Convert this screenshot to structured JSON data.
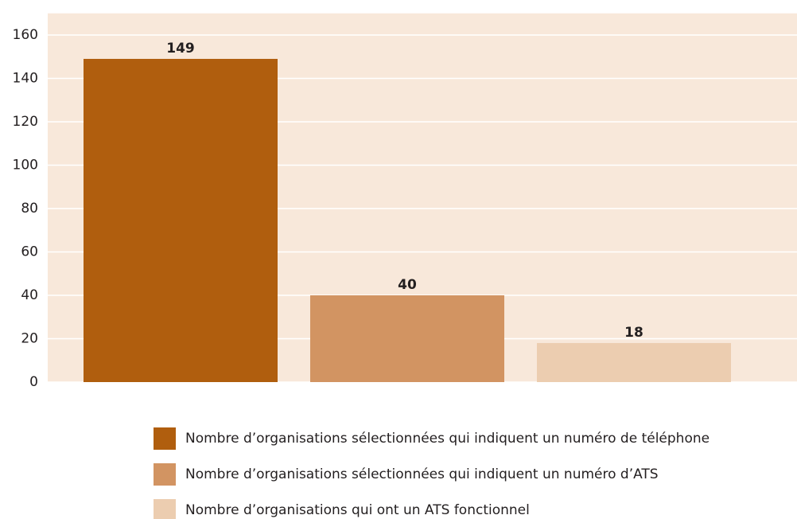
{
  "chart_data": {
    "type": "bar",
    "categories": [
      null
    ],
    "series": [
      {
        "name": "Nombre d’organisations sélectionnées qui indiquent un numéro de téléphone",
        "color": "#b05e0e",
        "values": [
          149
        ]
      },
      {
        "name": "Nombre d’organisations sélectionnées qui indiquent un numéro d’ATS",
        "color": "#d29462",
        "values": [
          40
        ]
      },
      {
        "name": "Nombre d’organisations qui ont un ATS fonctionnel",
        "color": "#eccdb0",
        "values": [
          18
        ]
      }
    ],
    "ylim": [
      0,
      170
    ],
    "yticks": [
      0,
      20,
      40,
      60,
      80,
      100,
      120,
      140,
      160
    ],
    "grid": true,
    "legend": "bottom"
  }
}
